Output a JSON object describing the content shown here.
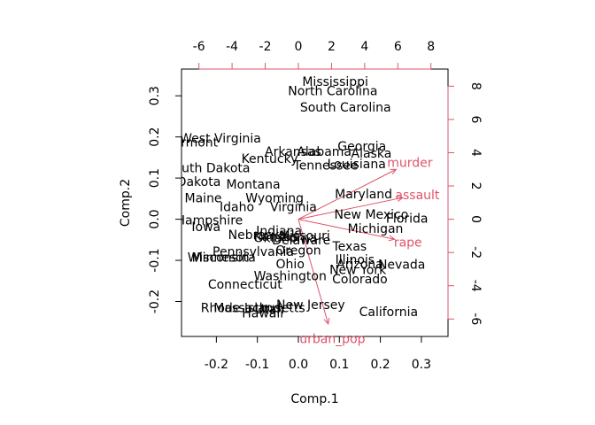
{
  "chart_data": {
    "type": "scatter",
    "subtype": "biplot",
    "title": "",
    "xlabel": "Comp.1",
    "ylabel": "Comp.2",
    "xlim": [
      -0.285,
      0.365
    ],
    "ylim": [
      -0.285,
      0.365
    ],
    "xticks": [
      -0.2,
      -0.1,
      0.0,
      0.1,
      0.2,
      0.3
    ],
    "xtick_labels": [
      "-0.2",
      "-0.1",
      "0.0",
      "0.1",
      "0.2",
      "0.3"
    ],
    "yticks": [
      -0.2,
      -0.1,
      0.0,
      0.1,
      0.2,
      0.3
    ],
    "ytick_labels": [
      "-0.2",
      "-0.1",
      "0.0",
      "0.1",
      "0.2",
      "0.3"
    ],
    "top_ticks": [
      -6,
      -4,
      -2,
      0,
      2,
      4,
      6,
      8
    ],
    "top_tick_labels": [
      "-6",
      "-4",
      "-2",
      "0",
      "2",
      "4",
      "6",
      "8"
    ],
    "right_ticks": [
      -6,
      -4,
      -2,
      0,
      2,
      4,
      6,
      8
    ],
    "right_tick_labels": [
      "-6",
      "-4",
      "-2",
      "0",
      "2",
      "4",
      "6",
      "8"
    ],
    "loading_lim": [
      -7.05,
      9.03
    ],
    "grid": false,
    "colors": {
      "points": "#000000",
      "loadings": "#DF536B"
    },
    "points": [
      {
        "label": "Mississippi",
        "x": 0.09,
        "y": 0.335
      },
      {
        "label": "North Carolina",
        "x": 0.084,
        "y": 0.312
      },
      {
        "label": "South Carolina",
        "x": 0.115,
        "y": 0.272
      },
      {
        "label": "West Virginia",
        "x": -0.19,
        "y": 0.197
      },
      {
        "label": "Vermont",
        "x": -0.26,
        "y": 0.187
      },
      {
        "label": "Georgia",
        "x": 0.155,
        "y": 0.178
      },
      {
        "label": "Arkansas",
        "x": -0.013,
        "y": 0.165
      },
      {
        "label": "Alabama",
        "x": 0.063,
        "y": 0.165
      },
      {
        "label": "Alaska",
        "x": 0.178,
        "y": 0.16
      },
      {
        "label": "Kentucky",
        "x": -0.07,
        "y": 0.148
      },
      {
        "label": "Tennessee",
        "x": 0.067,
        "y": 0.132
      },
      {
        "label": "Louisiana",
        "x": 0.142,
        "y": 0.135
      },
      {
        "label": "South Dakota",
        "x": -0.22,
        "y": 0.125
      },
      {
        "label": "North Dakota",
        "x": -0.29,
        "y": 0.092
      },
      {
        "label": "Montana",
        "x": -0.11,
        "y": 0.085
      },
      {
        "label": "Maine",
        "x": -0.232,
        "y": 0.052
      },
      {
        "label": "Wyoming",
        "x": -0.058,
        "y": 0.052
      },
      {
        "label": "Idaho",
        "x": -0.15,
        "y": 0.03
      },
      {
        "label": "Virginia",
        "x": -0.012,
        "y": 0.03
      },
      {
        "label": "Maryland",
        "x": 0.159,
        "y": 0.061
      },
      {
        "label": "New Mexico",
        "x": 0.178,
        "y": 0.012
      },
      {
        "label": "Florida",
        "x": 0.265,
        "y": 0.002
      },
      {
        "label": "New Hampshire",
        "x": -0.255,
        "y": -0.002
      },
      {
        "label": "Iowa",
        "x": -0.225,
        "y": -0.018
      },
      {
        "label": "Michigan",
        "x": 0.188,
        "y": -0.022
      },
      {
        "label": "Indiana",
        "x": -0.047,
        "y": -0.028
      },
      {
        "label": "Nebraska",
        "x": -0.1,
        "y": -0.038
      },
      {
        "label": "Kansas",
        "x": -0.055,
        "y": -0.042
      },
      {
        "label": "Oklahoma",
        "x": -0.032,
        "y": -0.045
      },
      {
        "label": "Missouri",
        "x": 0.015,
        "y": -0.04
      },
      {
        "label": "Delaware",
        "x": 0.007,
        "y": -0.05
      },
      {
        "label": "Texas",
        "x": 0.125,
        "y": -0.065
      },
      {
        "label": "Oregon",
        "x": 0.0,
        "y": -0.075
      },
      {
        "label": "Pennsylvania",
        "x": -0.11,
        "y": -0.078
      },
      {
        "label": "Wisconsin",
        "x": -0.195,
        "y": -0.092
      },
      {
        "label": "Minnesota",
        "x": -0.182,
        "y": -0.092
      },
      {
        "label": "Illinois",
        "x": 0.138,
        "y": -0.098
      },
      {
        "label": "Ohio",
        "x": -0.02,
        "y": -0.108
      },
      {
        "label": "Arizona",
        "x": 0.15,
        "y": -0.108
      },
      {
        "label": "Nevada",
        "x": 0.252,
        "y": -0.11
      },
      {
        "label": "New York",
        "x": 0.145,
        "y": -0.122
      },
      {
        "label": "Washington",
        "x": -0.02,
        "y": -0.138
      },
      {
        "label": "Colorado",
        "x": 0.15,
        "y": -0.145
      },
      {
        "label": "Connecticut",
        "x": -0.13,
        "y": -0.158
      },
      {
        "label": "New Jersey",
        "x": 0.03,
        "y": -0.208
      },
      {
        "label": "Rhode Island",
        "x": -0.14,
        "y": -0.215
      },
      {
        "label": "Massachusetts",
        "x": -0.095,
        "y": -0.215
      },
      {
        "label": "Utah",
        "x": -0.07,
        "y": -0.218
      },
      {
        "label": "Hawaii",
        "x": -0.087,
        "y": -0.228
      },
      {
        "label": "California",
        "x": 0.22,
        "y": -0.225
      }
    ],
    "loadings": [
      {
        "name": "murder",
        "x": 5.9,
        "y": 3.0
      },
      {
        "name": "assault",
        "x": 6.3,
        "y": 1.3
      },
      {
        "name": "rape",
        "x": 5.8,
        "y": -1.2
      },
      {
        "name": "urban_pop",
        "x": 1.8,
        "y": -6.3
      }
    ]
  }
}
